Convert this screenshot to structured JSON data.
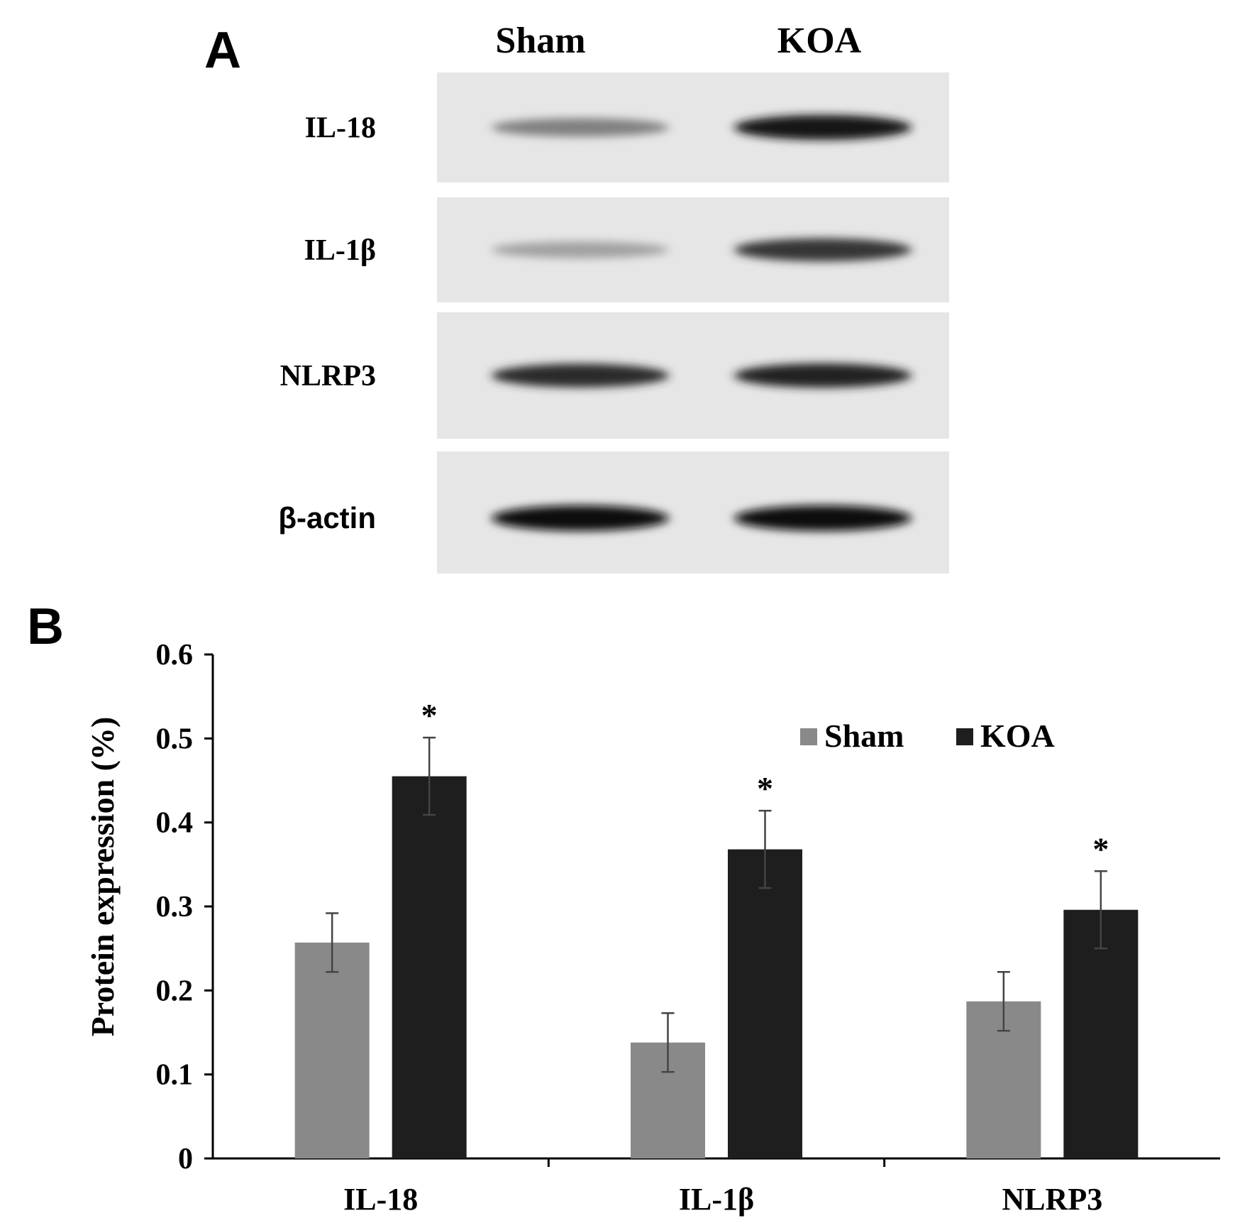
{
  "panels": {
    "a_label": "A",
    "b_label": "B"
  },
  "blot": {
    "lanes": [
      "Sham",
      "KOA"
    ],
    "rows": [
      {
        "label": "IL-18",
        "sham": 0.45,
        "koa": 0.95
      },
      {
        "label": "IL-1β",
        "sham": 0.3,
        "koa": 0.8
      },
      {
        "label": "NLRP3",
        "sham": 0.85,
        "koa": 0.9
      },
      {
        "label": "β-actin",
        "sham": 1.0,
        "koa": 1.0
      }
    ]
  },
  "chart_data": {
    "type": "bar",
    "title": "",
    "xlabel": "",
    "ylabel": "Protein expression (%)",
    "ylim": [
      0,
      0.6
    ],
    "yticks": [
      "0",
      "0.1",
      "0.2",
      "0.3",
      "0.4",
      "0.5",
      "0.6"
    ],
    "categories": [
      "IL-18",
      "IL-1β",
      "NLRP3"
    ],
    "series": [
      {
        "name": "Sham",
        "color": "#898989",
        "values": [
          0.257,
          0.138,
          0.187
        ],
        "errors": [
          0.035,
          0.035,
          0.035
        ]
      },
      {
        "name": "KOA",
        "color": "#1e1e1e",
        "values": [
          0.455,
          0.368,
          0.296
        ],
        "errors": [
          0.046,
          0.046,
          0.046
        ]
      }
    ],
    "significance": [
      "*",
      "*",
      "*"
    ],
    "legend": "top-right",
    "grid": false
  }
}
